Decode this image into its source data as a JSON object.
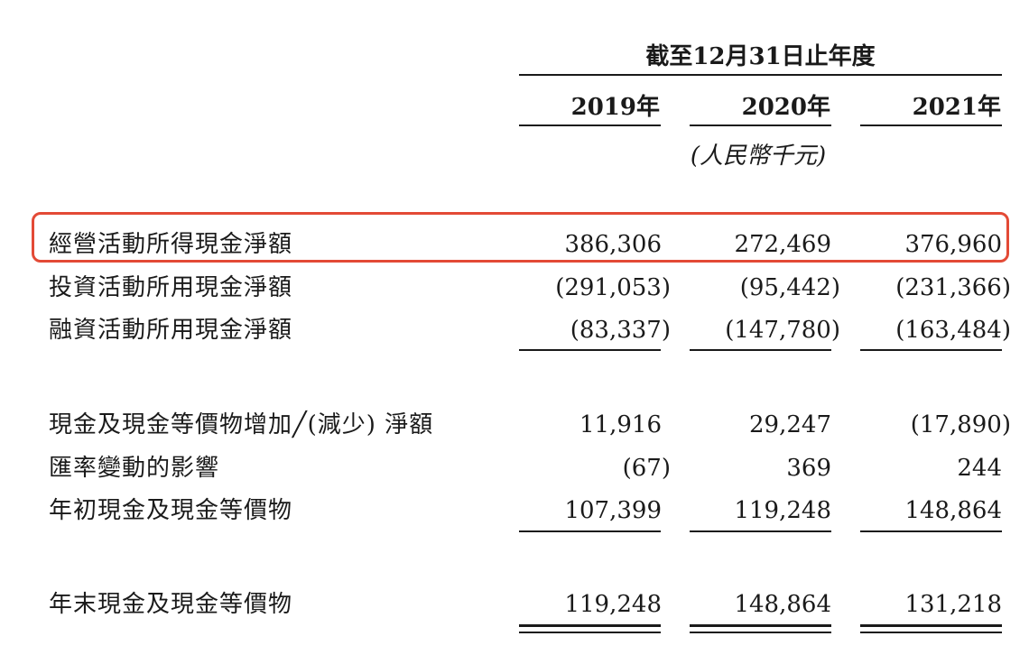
{
  "header": {
    "period": "截至12月31日止年度",
    "years": [
      "2019年",
      "2020年",
      "2021年"
    ],
    "unit": "(人民幣千元)"
  },
  "highlight_color": "#e34a36",
  "rows": [
    {
      "label": "經營活動所得現金淨額",
      "values": [
        "386,306",
        "272,469",
        "376,960"
      ]
    },
    {
      "label": "投資活動所用現金淨額",
      "values": [
        "(291,053)",
        "(95,442)",
        "(231,366)"
      ]
    },
    {
      "label": "融資活動所用現金淨額",
      "values": [
        "(83,337)",
        "(147,780)",
        "(163,484)"
      ]
    },
    {
      "label": "現金及現金等價物增加╱(減少) 淨額",
      "values": [
        "11,916",
        "29,247",
        "(17,890)"
      ]
    },
    {
      "label": "匯率變動的影響",
      "values": [
        "(67)",
        "369",
        "244"
      ]
    },
    {
      "label": "年初現金及現金等價物",
      "values": [
        "107,399",
        "119,248",
        "148,864"
      ]
    },
    {
      "label": "年末現金及現金等價物",
      "values": [
        "119,248",
        "148,864",
        "131,218"
      ]
    }
  ]
}
